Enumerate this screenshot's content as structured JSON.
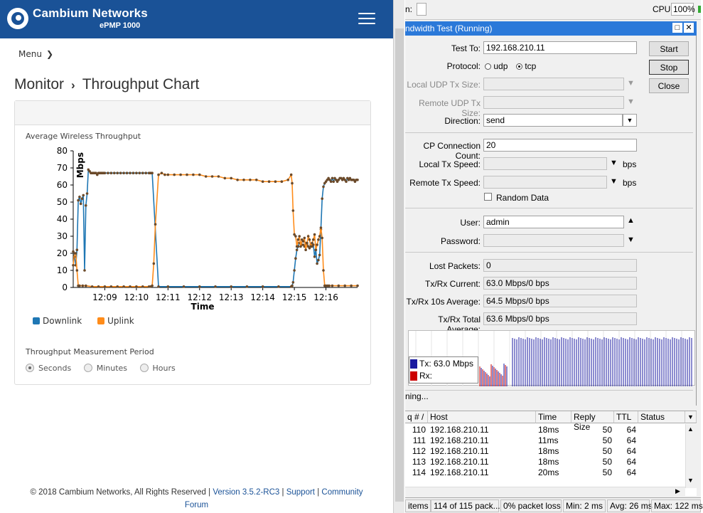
{
  "header": {
    "brand": "Cambium Networks",
    "model": "ePMP 1000"
  },
  "menu": {
    "label": "Menu"
  },
  "breadcrumb": {
    "section": "Monitor",
    "separator": "›",
    "page": "Throughput Chart"
  },
  "chart_panel": {
    "title": "Average Wireless Throughput",
    "period_title": "Throughput Measurement Period",
    "period_options": [
      "Seconds",
      "Minutes",
      "Hours"
    ],
    "period_selected": "Seconds"
  },
  "chart_data": {
    "type": "line",
    "xlabel": "Time",
    "ylabel": "Mbps",
    "ylim": [
      0,
      80
    ],
    "yticks": [
      0,
      10,
      20,
      30,
      40,
      50,
      60,
      70,
      80
    ],
    "xticks": [
      "12:09",
      "12:10",
      "12:11",
      "12:12",
      "12:13",
      "12:14",
      "12:15",
      "12:16"
    ],
    "x_unit": "minutes after 12:08",
    "series": [
      {
        "name": "Downlink",
        "color": "#1f77b4",
        "x": [
          0.0,
          0.04,
          0.08,
          0.12,
          0.16,
          0.2,
          0.24,
          0.28,
          0.32,
          0.36,
          0.4,
          0.44,
          0.48,
          0.52,
          0.56,
          0.6,
          0.64,
          0.68,
          0.72,
          0.76,
          0.8,
          0.84,
          0.88,
          0.92,
          0.96,
          1.0,
          1.1,
          1.2,
          1.3,
          1.4,
          1.5,
          1.6,
          1.7,
          1.8,
          1.9,
          2.0,
          2.1,
          2.2,
          2.3,
          2.4,
          2.45,
          2.5,
          2.7,
          3.0,
          3.5,
          4.0,
          4.5,
          5.0,
          5.5,
          6.0,
          6.5,
          6.9,
          6.93,
          6.96,
          7.0,
          7.04,
          7.08,
          7.12,
          7.16,
          7.2,
          7.24,
          7.28,
          7.32,
          7.36,
          7.4,
          7.44,
          7.48,
          7.52,
          7.56,
          7.6,
          7.64,
          7.68,
          7.72,
          7.76,
          7.8,
          7.84,
          7.88,
          7.92,
          7.96,
          8.0,
          8.04,
          8.08,
          8.12,
          8.16,
          8.2,
          8.24,
          8.28,
          8.32,
          8.36,
          8.4,
          8.44,
          8.48,
          8.52,
          8.56,
          8.6,
          8.64,
          8.68,
          8.72,
          8.76,
          8.8,
          8.84,
          8.88,
          8.92,
          8.96,
          9.0
        ],
        "y": [
          21,
          18,
          13,
          22,
          51,
          53,
          49,
          52,
          54,
          10,
          48,
          55,
          69,
          68,
          67,
          67,
          67,
          67,
          67,
          66,
          67,
          67,
          67,
          67,
          67,
          67,
          67,
          67,
          67,
          67,
          67,
          67,
          67,
          67,
          67,
          67,
          67,
          67,
          67,
          67,
          67,
          67,
          0.5,
          0.5,
          0.5,
          0.5,
          0.5,
          0.5,
          0.5,
          0.5,
          0.5,
          0.5,
          1,
          3,
          10,
          17,
          22,
          24,
          26,
          26,
          25,
          25,
          24,
          26,
          25,
          24,
          23,
          25,
          24,
          25,
          18,
          22,
          14,
          16,
          19,
          34,
          52,
          59,
          61,
          62,
          63,
          64,
          63,
          62,
          64,
          62,
          64,
          63,
          62,
          63,
          64,
          64,
          63,
          64,
          63,
          62,
          64,
          63,
          64,
          63,
          63,
          63,
          62,
          63,
          63
        ]
      },
      {
        "name": "Uplink",
        "color": "#ff8c1a",
        "x": [
          0.0,
          0.04,
          0.08,
          0.12,
          0.16,
          0.2,
          0.3,
          0.4,
          0.6,
          0.8,
          1.0,
          1.2,
          1.4,
          1.6,
          1.8,
          2.0,
          2.2,
          2.4,
          2.45,
          2.5,
          2.55,
          2.6,
          2.7,
          2.8,
          2.9,
          3.0,
          3.2,
          3.4,
          3.6,
          3.8,
          4.0,
          4.2,
          4.4,
          4.6,
          4.8,
          5.0,
          5.2,
          5.4,
          5.6,
          5.8,
          6.0,
          6.2,
          6.4,
          6.6,
          6.8,
          6.9,
          6.93,
          6.96,
          7.0,
          7.04,
          7.08,
          7.12,
          7.16,
          7.2,
          7.24,
          7.28,
          7.32,
          7.36,
          7.4,
          7.44,
          7.48,
          7.52,
          7.56,
          7.6,
          7.64,
          7.68,
          7.72,
          7.76,
          7.8,
          7.84,
          7.88,
          7.92,
          7.96,
          8.0,
          8.05,
          8.1,
          8.2,
          8.4,
          8.6,
          8.8,
          9.0
        ],
        "y": [
          13,
          20,
          20,
          10,
          1,
          1,
          1,
          1,
          0.5,
          0.5,
          0.5,
          0.5,
          0.5,
          0.5,
          0.5,
          0.5,
          0.5,
          0.5,
          0.5,
          1,
          14,
          37,
          66,
          67,
          66,
          66,
          66,
          66,
          66,
          66,
          66,
          65,
          65,
          65,
          64,
          64,
          63,
          63,
          63,
          63,
          62,
          62,
          62,
          62,
          63,
          66,
          61,
          45,
          31,
          30,
          24,
          28,
          30,
          24,
          28,
          27,
          29,
          22,
          26,
          30,
          28,
          24,
          26,
          28,
          31,
          22,
          25,
          28,
          30,
          35,
          29,
          10,
          1,
          1,
          1,
          1,
          1,
          1,
          1,
          1,
          1
        ]
      }
    ]
  },
  "footer": {
    "copyright": "© 2018 Cambium Networks, All Rights Reserved |",
    "version": "Version 3.5.2-RC3",
    "sep": "|",
    "support": "Support",
    "community": "Community",
    "forum": "Forum"
  },
  "winbox": {
    "top_fragment": "n:",
    "cpu_label": "CPU:",
    "cpu_value": "100%",
    "window_title": "ndwidth Test (Running)",
    "labels": {
      "test_to": "Test To:",
      "protocol": "Protocol:",
      "local_udp": "Local UDP Tx Size:",
      "remote_udp": "Remote UDP Tx Size:",
      "direction": "Direction:",
      "tcp_count": "CP Connection Count:",
      "local_speed": "Local Tx Speed:",
      "remote_speed": "Remote Tx Speed:",
      "random_data": "Random Data",
      "user": "User:",
      "password": "Password:",
      "lost": "Lost Packets:",
      "current": "Tx/Rx Current:",
      "avg10": "Tx/Rx 10s Average:",
      "total": "Tx/Rx Total Average:"
    },
    "values": {
      "test_to": "192.168.210.11",
      "direction": "send",
      "tcp_count": "20",
      "user": "admin",
      "lost": "0",
      "current": "63.0 Mbps/0 bps",
      "avg10": "64.5 Mbps/0 bps",
      "total": "63.6 Mbps/0 bps"
    },
    "protocol_udp": "udp",
    "protocol_tcp": "tcp",
    "unit_bps": "bps",
    "buttons": {
      "start": "Start",
      "stop": "Stop",
      "close": "Close"
    },
    "graph_legend": {
      "tx": "Tx:  63.0 Mbps",
      "rx": "Rx:"
    },
    "graph_colors": {
      "tx": "#1a1aa0",
      "rx": "#cc0000"
    },
    "status": "ning..."
  },
  "ping_table": {
    "headers": [
      "q # /",
      "Host",
      "Time",
      "Reply Size",
      "TTL",
      "Status"
    ],
    "rows": [
      [
        "110",
        "192.168.210.11",
        "18ms",
        "50",
        "64",
        ""
      ],
      [
        "111",
        "192.168.210.11",
        "11ms",
        "50",
        "64",
        ""
      ],
      [
        "112",
        "192.168.210.11",
        "18ms",
        "50",
        "64",
        ""
      ],
      [
        "113",
        "192.168.210.11",
        "18ms",
        "50",
        "64",
        ""
      ],
      [
        "114",
        "192.168.210.11",
        "20ms",
        "50",
        "64",
        ""
      ]
    ]
  },
  "status_bar": {
    "items": "items",
    "packets": "114 of 115 pack...",
    "loss": "0% packet loss",
    "min": "Min: 2 ms",
    "avg": "Avg: 26 ms",
    "max": "Max: 122 ms"
  }
}
